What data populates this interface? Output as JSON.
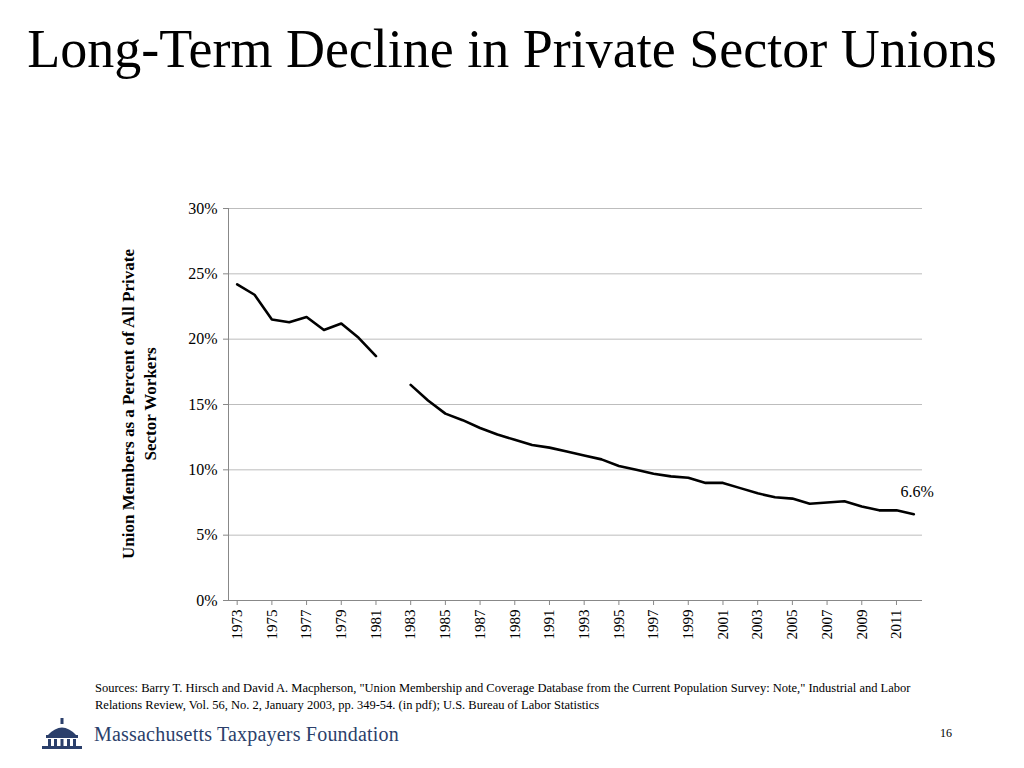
{
  "chart_data": {
    "type": "line",
    "title": "Long-Term Decline in Private Sector Unions",
    "y_label": "Union Members as a Percent of All Private Sector Workers",
    "x": [
      1973,
      1974,
      1975,
      1976,
      1977,
      1978,
      1979,
      1980,
      1981,
      1982,
      1983,
      1984,
      1985,
      1986,
      1987,
      1988,
      1989,
      1990,
      1991,
      1992,
      1993,
      1994,
      1995,
      1996,
      1997,
      1998,
      1999,
      2000,
      2001,
      2002,
      2003,
      2004,
      2005,
      2006,
      2007,
      2008,
      2009,
      2010,
      2011,
      2012
    ],
    "values": [
      24.2,
      23.4,
      21.5,
      21.3,
      21.7,
      20.7,
      21.2,
      20.1,
      18.7,
      null,
      16.5,
      15.3,
      14.3,
      13.8,
      13.2,
      12.7,
      12.3,
      11.9,
      11.7,
      11.4,
      11.1,
      10.8,
      10.3,
      10.0,
      9.7,
      9.5,
      9.4,
      9.0,
      9.0,
      8.6,
      8.2,
      7.9,
      7.8,
      7.4,
      7.5,
      7.6,
      7.2,
      6.9,
      6.9,
      6.6
    ],
    "color": "#000000",
    "xlim": [
      1972.5,
      2012.5
    ],
    "xticks": [
      1973,
      1975,
      1977,
      1979,
      1981,
      1983,
      1985,
      1987,
      1989,
      1991,
      1993,
      1995,
      1997,
      1999,
      2001,
      2003,
      2005,
      2007,
      2009,
      2011
    ],
    "ylim": [
      0,
      30
    ],
    "yticks": [
      {
        "value": 0,
        "label": "0%"
      },
      {
        "value": 5,
        "label": "5%"
      },
      {
        "value": 10,
        "label": "10%"
      },
      {
        "value": 15,
        "label": "15%"
      },
      {
        "value": 20,
        "label": "20%"
      },
      {
        "value": 25,
        "label": "25%"
      },
      {
        "value": 30,
        "label": "30%"
      }
    ],
    "grid": true,
    "annotations": [
      {
        "text": "6.6%",
        "x": 2012,
        "y": 6.6
      }
    ]
  },
  "source": "Sources: Barry T. Hirsch and David A. Macpherson, \"Union Membership and Coverage Database from the Current Population Survey: Note,\" Industrial and Labor Relations Review, Vol. 56, No. 2, January 2003, pp. 349-54. (in pdf); U.S. Bureau of Labor Statistics",
  "organization": "Massachusetts Taxpayers Foundation",
  "page_number": "16"
}
